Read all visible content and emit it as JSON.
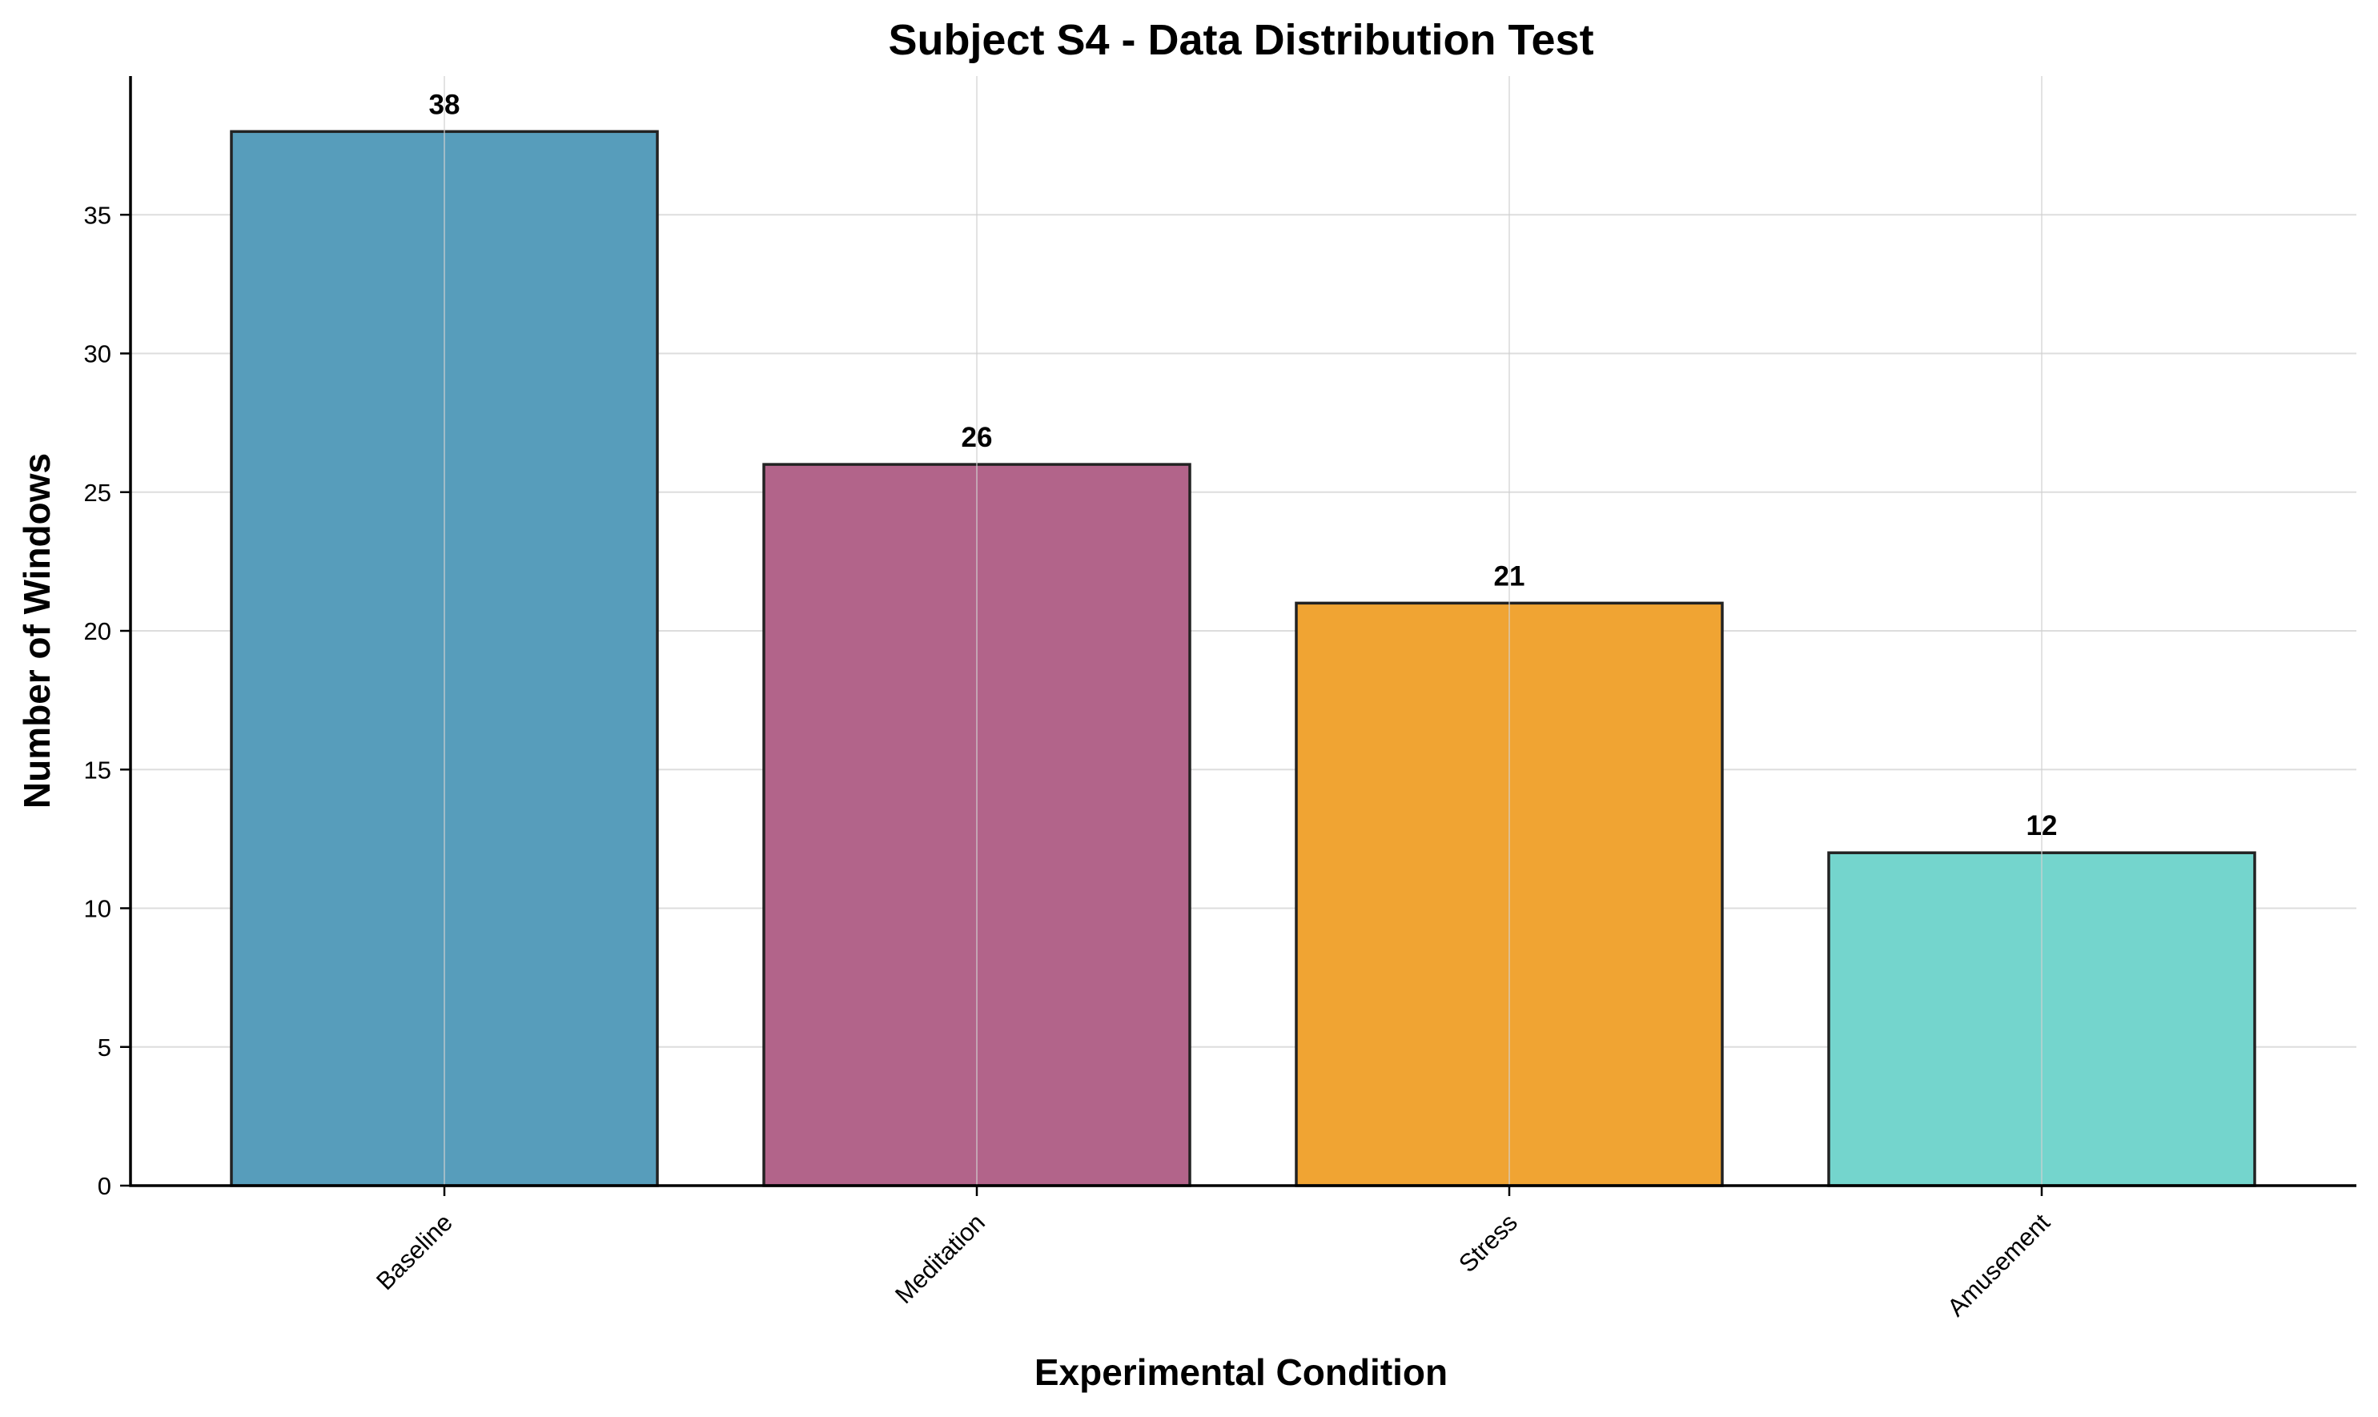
{
  "chart_data": {
    "type": "bar",
    "title": "Subject S4 - Data Distribution Test",
    "xlabel": "Experimental Condition",
    "ylabel": "Number of Windows",
    "categories": [
      "Baseline",
      "Meditation",
      "Stress",
      "Amusement"
    ],
    "values": [
      38,
      26,
      21,
      12
    ],
    "value_labels": [
      "38",
      "26",
      "21",
      "12"
    ],
    "ylim": [
      0,
      40
    ],
    "yticks": [
      0,
      5,
      10,
      15,
      20,
      25,
      30,
      35
    ],
    "ytick_labels": [
      "0",
      "5",
      "10",
      "15",
      "20",
      "25",
      "30",
      "35"
    ],
    "grid": true,
    "bar_colors": [
      "#579dbb",
      "#b2648a",
      "#f0a433",
      "#74d5cd"
    ],
    "bar_edge_color": "#222222"
  }
}
